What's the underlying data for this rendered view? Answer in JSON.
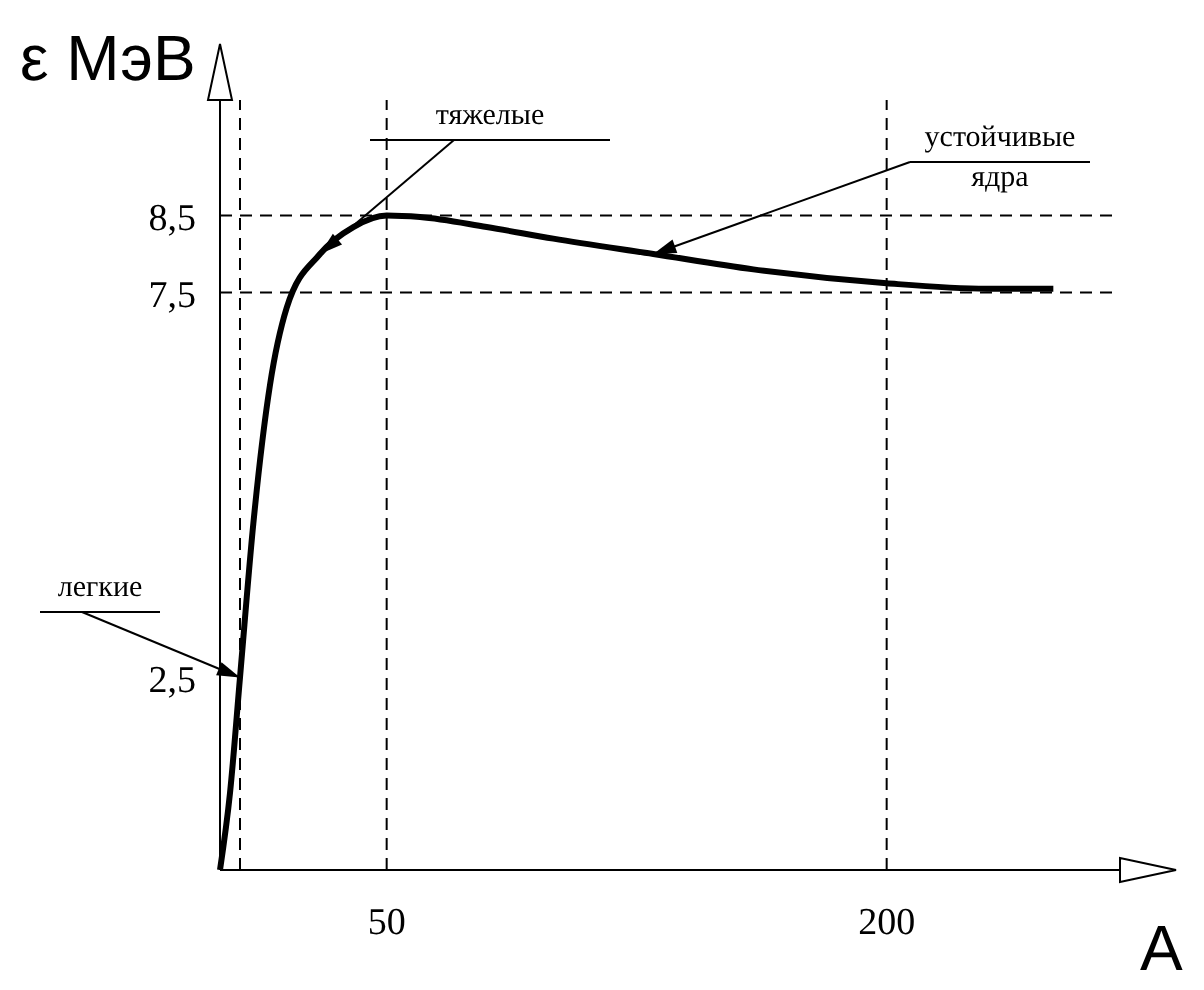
{
  "chart_data": {
    "type": "line",
    "ylabel": "ε МэВ",
    "xlabel": "A",
    "x": [
      0,
      3,
      6,
      10,
      15,
      20,
      30,
      40,
      50,
      60,
      80,
      100,
      130,
      160,
      200,
      230,
      250
    ],
    "series": [
      {
        "color": "#000000",
        "values": [
          0,
          1.0,
          2.5,
          4.5,
          6.3,
          7.3,
          8.0,
          8.35,
          8.5,
          8.48,
          8.35,
          8.2,
          8.0,
          7.8,
          7.62,
          7.55,
          7.55
        ]
      }
    ],
    "xlim": [
      0,
      270
    ],
    "xticks": [
      50,
      200
    ],
    "ylim": [
      0,
      10
    ],
    "yticks": [
      {
        "value": 2.5,
        "label": "2,5"
      },
      {
        "value": 7.5,
        "label": "7,5"
      },
      {
        "value": 8.5,
        "label": "8,5"
      }
    ],
    "grid": false,
    "marker": "none",
    "line_style": "solid",
    "ref_lines": [
      {
        "axis": "y",
        "value": 8.5,
        "line_style": "dashed"
      },
      {
        "axis": "y",
        "value": 7.5,
        "line_style": "dashed"
      },
      {
        "axis": "x",
        "value": 50,
        "line_style": "dashed"
      },
      {
        "axis": "x",
        "value": 200,
        "line_style": "dashed"
      },
      {
        "axis": "x",
        "value": 6,
        "line_style": "dashed"
      }
    ],
    "annotations": [
      {
        "text": "легкие",
        "x": 6,
        "y": 2.5
      },
      {
        "text": "тяжелые",
        "x": 30,
        "y": 8.0
      },
      {
        "text": "устойчивые ядра",
        "x": 130,
        "y": 8.0
      }
    ]
  }
}
